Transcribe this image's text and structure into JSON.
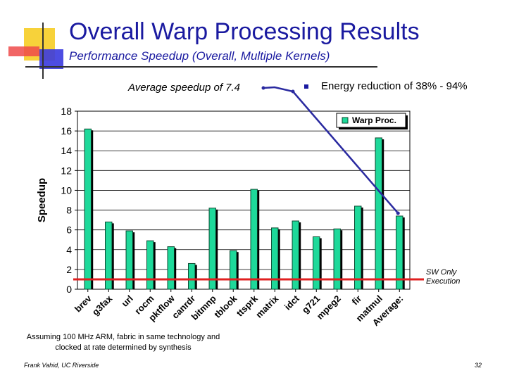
{
  "slide": {
    "title": "Overall Warp Processing Results",
    "subtitle": "Performance Speedup (Overall, Multiple Kernels)",
    "avg_speedup_note": "Average speedup of 7.4",
    "energy_bullet": "Energy reduction of 38% - 94%",
    "sw_only_label": "SW Only Execution",
    "footnote": "Assuming 100 MHz ARM, fabric in same technology and clocked at rate determined by synthesis",
    "author": "Frank Vahid, UC Riverside",
    "page_number": "32"
  },
  "colors": {
    "title": "#1a1aa0",
    "bar_fill": "#1ed99a",
    "bar_outline": "#0a4a30",
    "annotation_line": "#2a2aa0",
    "sw_line": "#e02020",
    "deco_yellow": "#f7d23a",
    "deco_red": "#ef4a4a",
    "deco_blue": "#3a3adf"
  },
  "chart_data": {
    "type": "bar",
    "title": "",
    "xlabel": "",
    "ylabel": "Speedup",
    "ylim": [
      0,
      18
    ],
    "yticks": [
      0,
      2,
      4,
      6,
      8,
      10,
      12,
      14,
      16,
      18
    ],
    "grid": true,
    "legend_position": "top-right",
    "series": [
      {
        "name": "Warp Proc.",
        "values": [
          16.2,
          6.8,
          5.9,
          4.9,
          4.3,
          2.6,
          8.2,
          3.9,
          10.1,
          6.2,
          6.9,
          5.3,
          6.1,
          8.4,
          15.3,
          7.4
        ]
      }
    ],
    "categories": [
      "brev",
      "g3fax",
      "url",
      "rocm",
      "pktflow",
      "canrdr",
      "bitmnp",
      "tblook",
      "ttsprk",
      "matrix",
      "idct",
      "g721",
      "mpeg2",
      "fir",
      "matmul",
      "Average:"
    ],
    "sw_only_reference": 1.0
  }
}
